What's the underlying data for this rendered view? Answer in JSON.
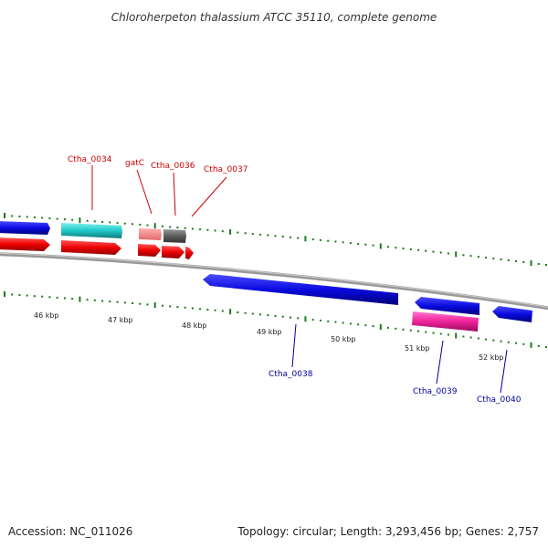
{
  "title": "Chloroherpeton thalassium ATCC 35110, complete genome",
  "footer": {
    "accession": "Accession: NC_011026",
    "summary": "Topology: circular; Length: 3,293,456 bp; Genes: 2,757"
  },
  "colors": {
    "forward_label": "#cc0000",
    "reverse_label": "#000099",
    "tick": "#1a7a1a",
    "backbone": "#888888"
  },
  "kbp_labels": [
    "46 kbp",
    "47 kbp",
    "48 kbp",
    "49 kbp",
    "50 kbp",
    "51 kbp",
    "52 kbp"
  ],
  "forward_genes": [
    {
      "name": "Ctha_0034",
      "color": "#22cccc"
    },
    {
      "name": "gatC",
      "color": "#f08080"
    },
    {
      "name": "Ctha_0036",
      "color": "#666666"
    },
    {
      "name": "Ctha_0037",
      "color": ""
    }
  ],
  "reverse_genes": [
    {
      "name": "Ctha_0038",
      "color": "#1010dd"
    },
    {
      "name": "Ctha_0039",
      "color": "#ee22aa"
    },
    {
      "name": "Ctha_0040",
      "color": "#1010dd"
    }
  ]
}
